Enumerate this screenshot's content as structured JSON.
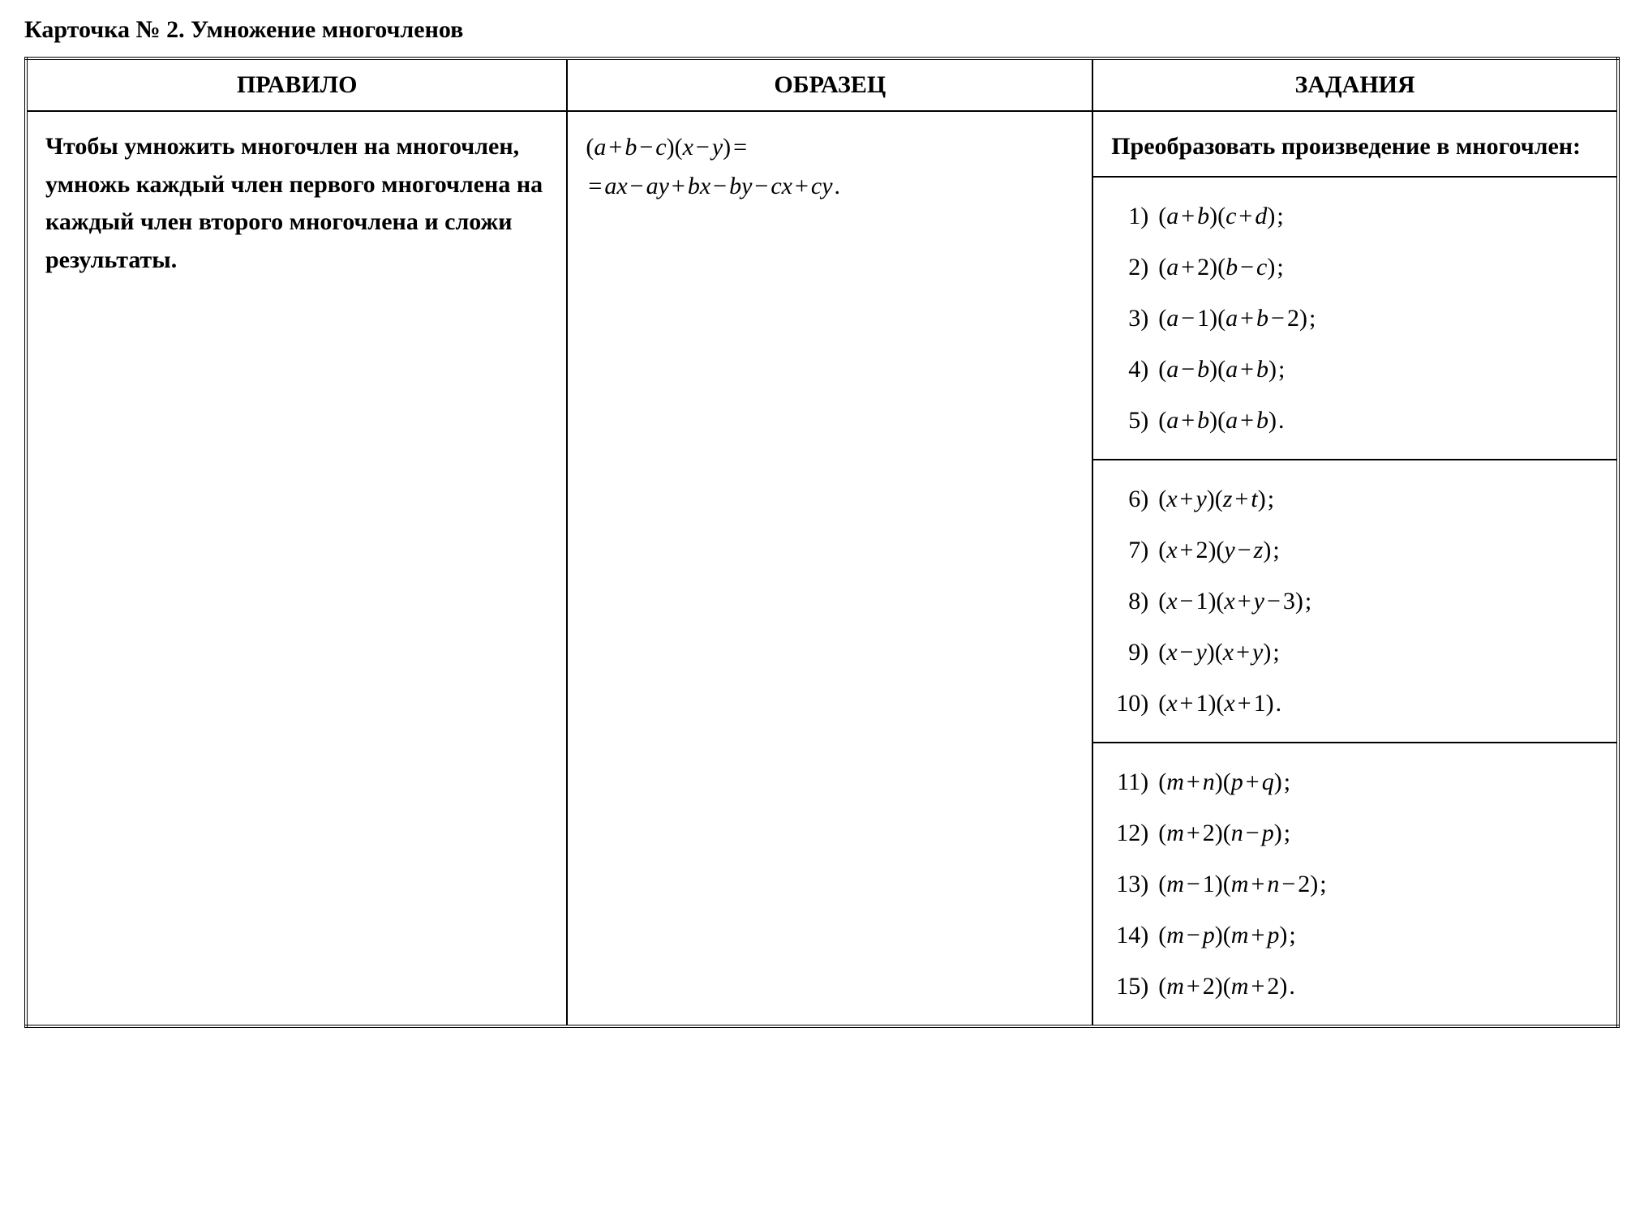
{
  "title": "Карточка № 2. Умножение многочленов",
  "headers": {
    "rule": "ПРАВИЛО",
    "sample": "ОБРАЗЕЦ",
    "tasks": "ЗАДАНИЯ"
  },
  "rule_text": "Чтобы умножить многочлен на многочлен, умножь каждый член первого многочлена на каждый член второго многочлена и сложи результаты.",
  "sample_line1_html": "(<span class='math'>a</span><span class='op'>+</span><span class='math'>b</span><span class='op'>−</span><span class='math'>c</span>)(<span class='math'>x</span><span class='op'>−</span><span class='math'>y</span>)<span class='op'>=</span>",
  "sample_line2_html": "<span class='op'>=</span><span class='math'>ax</span><span class='op'>−</span><span class='math'>ay</span><span class='op'>+</span><span class='math'>bx</span><span class='op'>−</span><span class='math'>by</span><span class='op'>−</span><span class='math'>cx</span><span class='op'>+</span><span class='math'>cy</span><span class='punct'>.</span>",
  "task_intro": "Преобразовать произведение в многочлен:",
  "groups": [
    [
      {
        "n": "1)",
        "expr_html": "(<span class='math'>a</span><span class='op'>+</span><span class='math'>b</span>)(<span class='math'>c</span><span class='op'>+</span><span class='math'>d</span>)<span class='punct'>;</span>"
      },
      {
        "n": "2)",
        "expr_html": "(<span class='math'>a</span><span class='op'>+</span><span class='num'>2</span>)(<span class='math'>b</span><span class='op'>−</span><span class='math'>c</span>)<span class='punct'>;</span>"
      },
      {
        "n": "3)",
        "expr_html": "(<span class='math'>a</span><span class='op'>−</span><span class='num'>1</span>)(<span class='math'>a</span><span class='op'>+</span><span class='math'>b</span><span class='op'>−</span><span class='num'>2</span>)<span class='punct'>;</span>"
      },
      {
        "n": "4)",
        "expr_html": "(<span class='math'>a</span><span class='op'>−</span><span class='math'>b</span>)(<span class='math'>a</span><span class='op'>+</span><span class='math'>b</span>)<span class='punct'>;</span>"
      },
      {
        "n": "5)",
        "expr_html": "(<span class='math'>a</span><span class='op'>+</span><span class='math'>b</span>)(<span class='math'>a</span><span class='op'>+</span><span class='math'>b</span>)<span class='punct'>.</span>"
      }
    ],
    [
      {
        "n": "6)",
        "expr_html": "(<span class='math'>x</span><span class='op'>+</span><span class='math'>y</span>)(<span class='math'>z</span><span class='op'>+</span><span class='math'>t</span>)<span class='punct'>;</span>"
      },
      {
        "n": "7)",
        "expr_html": "(<span class='math'>x</span><span class='op'>+</span><span class='num'>2</span>)(<span class='math'>y</span><span class='op'>−</span><span class='math'>z</span>)<span class='punct'>;</span>"
      },
      {
        "n": "8)",
        "expr_html": "(<span class='math'>x</span><span class='op'>−</span><span class='num'>1</span>)(<span class='math'>x</span><span class='op'>+</span><span class='math'>y</span><span class='op'>−</span><span class='num'>3</span>)<span class='punct'>;</span>"
      },
      {
        "n": "9)",
        "expr_html": "(<span class='math'>x</span><span class='op'>−</span><span class='math'>y</span>)(<span class='math'>x</span><span class='op'>+</span><span class='math'>y</span>)<span class='punct'>;</span>"
      },
      {
        "n": "10)",
        "expr_html": "(<span class='math'>x</span><span class='op'>+</span><span class='num'>1</span>)(<span class='math'>x</span><span class='op'>+</span><span class='num'>1</span>)<span class='punct'>.</span>"
      }
    ],
    [
      {
        "n": "11)",
        "expr_html": "(<span class='math'>m</span><span class='op'>+</span><span class='math'>n</span>)(<span class='math'>p</span><span class='op'>+</span><span class='math'>q</span>)<span class='punct'>;</span>"
      },
      {
        "n": "12)",
        "expr_html": "(<span class='math'>m</span><span class='op'>+</span><span class='num'>2</span>)(<span class='math'>n</span><span class='op'>−</span><span class='math'>p</span>)<span class='punct'>;</span>"
      },
      {
        "n": "13)",
        "expr_html": "(<span class='math'>m</span><span class='op'>−</span><span class='num'>1</span>)(<span class='math'>m</span><span class='op'>+</span><span class='math'>n</span><span class='op'>−</span><span class='num'>2</span>)<span class='punct'>;</span>"
      },
      {
        "n": "14)",
        "expr_html": "(<span class='math'>m</span><span class='op'>−</span><span class='math'>p</span>)(<span class='math'>m</span><span class='op'>+</span><span class='math'>p</span>)<span class='punct'>;</span>"
      },
      {
        "n": "15)",
        "expr_html": "(<span class='math'>m</span><span class='op'>+</span><span class='num'>2</span>)(<span class='math'>m</span><span class='op'>+</span><span class='num'>2</span>)<span class='punct'>.</span>"
      }
    ]
  ]
}
